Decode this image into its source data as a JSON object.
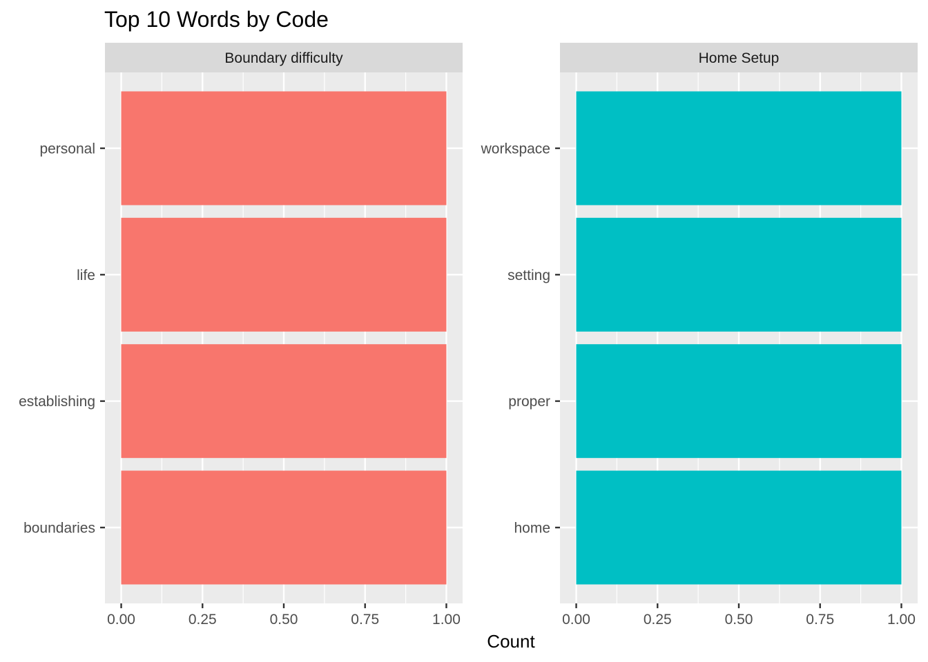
{
  "chart_data": {
    "type": "bar",
    "orientation": "horizontal",
    "title": "Top 10 Words by Code",
    "xlabel": "Count",
    "ylabel": "",
    "xlim": [
      -0.05,
      1.05
    ],
    "x_ticks": [
      "0.00",
      "0.25",
      "0.50",
      "0.75",
      "1.00"
    ],
    "grid": true,
    "legend": "none",
    "panels": [
      {
        "name": "Boundary difficulty",
        "color": "#F8766D",
        "categories": [
          "personal",
          "life",
          "establishing",
          "boundaries"
        ],
        "values": [
          1,
          1,
          1,
          1
        ]
      },
      {
        "name": "Home Setup",
        "color": "#00BFC4",
        "categories": [
          "workspace",
          "setting",
          "proper",
          "home"
        ],
        "values": [
          1,
          1,
          1,
          1
        ]
      }
    ]
  }
}
